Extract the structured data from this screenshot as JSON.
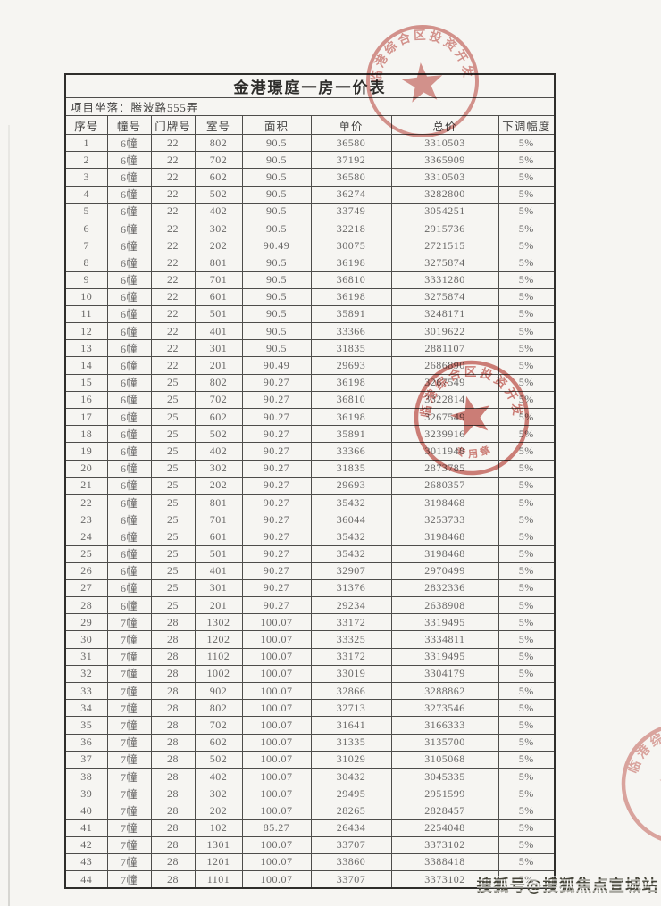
{
  "page": {
    "title": "金港璟庭一房一价表",
    "location": "项目坐落：腾波路555弄"
  },
  "table": {
    "headers": [
      "序号",
      "幢号",
      "门牌号",
      "室号",
      "面积",
      "单价",
      "总价",
      "下调幅度"
    ],
    "rows": [
      [
        "1",
        "6幢",
        "22",
        "802",
        "90.5",
        "36580",
        "3310503",
        "5%"
      ],
      [
        "2",
        "6幢",
        "22",
        "702",
        "90.5",
        "37192",
        "3365909",
        "5%"
      ],
      [
        "3",
        "6幢",
        "22",
        "602",
        "90.5",
        "36580",
        "3310503",
        "5%"
      ],
      [
        "4",
        "6幢",
        "22",
        "502",
        "90.5",
        "36274",
        "3282800",
        "5%"
      ],
      [
        "5",
        "6幢",
        "22",
        "402",
        "90.5",
        "33749",
        "3054251",
        "5%"
      ],
      [
        "6",
        "6幢",
        "22",
        "302",
        "90.5",
        "32218",
        "2915736",
        "5%"
      ],
      [
        "7",
        "6幢",
        "22",
        "202",
        "90.49",
        "30075",
        "2721515",
        "5%"
      ],
      [
        "8",
        "6幢",
        "22",
        "801",
        "90.5",
        "36198",
        "3275874",
        "5%"
      ],
      [
        "9",
        "6幢",
        "22",
        "701",
        "90.5",
        "36810",
        "3331280",
        "5%"
      ],
      [
        "10",
        "6幢",
        "22",
        "601",
        "90.5",
        "36198",
        "3275874",
        "5%"
      ],
      [
        "11",
        "6幢",
        "22",
        "501",
        "90.5",
        "35891",
        "3248171",
        "5%"
      ],
      [
        "12",
        "6幢",
        "22",
        "401",
        "90.5",
        "33366",
        "3019622",
        "5%"
      ],
      [
        "13",
        "6幢",
        "22",
        "301",
        "90.5",
        "31835",
        "2881107",
        "5%"
      ],
      [
        "14",
        "6幢",
        "22",
        "201",
        "90.49",
        "29693",
        "2686890",
        "5%"
      ],
      [
        "15",
        "6幢",
        "25",
        "802",
        "90.27",
        "36198",
        "3267549",
        "5%"
      ],
      [
        "16",
        "6幢",
        "25",
        "702",
        "90.27",
        "36810",
        "3322814",
        "5%"
      ],
      [
        "17",
        "6幢",
        "25",
        "602",
        "90.27",
        "36198",
        "3267549",
        "5%"
      ],
      [
        "18",
        "6幢",
        "25",
        "502",
        "90.27",
        "35891",
        "3239916",
        "5%"
      ],
      [
        "19",
        "6幢",
        "25",
        "402",
        "90.27",
        "33366",
        "3011948",
        "5%"
      ],
      [
        "20",
        "6幢",
        "25",
        "302",
        "90.27",
        "31835",
        "2873785",
        "5%"
      ],
      [
        "21",
        "6幢",
        "25",
        "202",
        "90.27",
        "29693",
        "2680357",
        "5%"
      ],
      [
        "22",
        "6幢",
        "25",
        "801",
        "90.27",
        "35432",
        "3198468",
        "5%"
      ],
      [
        "23",
        "6幢",
        "25",
        "701",
        "90.27",
        "36044",
        "3253733",
        "5%"
      ],
      [
        "24",
        "6幢",
        "25",
        "601",
        "90.27",
        "35432",
        "3198468",
        "5%"
      ],
      [
        "25",
        "6幢",
        "25",
        "501",
        "90.27",
        "35432",
        "3198468",
        "5%"
      ],
      [
        "26",
        "6幢",
        "25",
        "401",
        "90.27",
        "32907",
        "2970499",
        "5%"
      ],
      [
        "27",
        "6幢",
        "25",
        "301",
        "90.27",
        "31376",
        "2832336",
        "5%"
      ],
      [
        "28",
        "6幢",
        "25",
        "201",
        "90.27",
        "29234",
        "2638908",
        "5%"
      ],
      [
        "29",
        "7幢",
        "28",
        "1302",
        "100.07",
        "33172",
        "3319495",
        "5%"
      ],
      [
        "30",
        "7幢",
        "28",
        "1202",
        "100.07",
        "33325",
        "3334811",
        "5%"
      ],
      [
        "31",
        "7幢",
        "28",
        "1102",
        "100.07",
        "33172",
        "3319495",
        "5%"
      ],
      [
        "32",
        "7幢",
        "28",
        "1002",
        "100.07",
        "33019",
        "3304179",
        "5%"
      ],
      [
        "33",
        "7幢",
        "28",
        "902",
        "100.07",
        "32866",
        "3288862",
        "5%"
      ],
      [
        "34",
        "7幢",
        "28",
        "802",
        "100.07",
        "32713",
        "3273546",
        "5%"
      ],
      [
        "35",
        "7幢",
        "28",
        "702",
        "100.07",
        "31641",
        "3166333",
        "5%"
      ],
      [
        "36",
        "7幢",
        "28",
        "602",
        "100.07",
        "31335",
        "3135700",
        "5%"
      ],
      [
        "37",
        "7幢",
        "28",
        "502",
        "100.07",
        "31029",
        "3105068",
        "5%"
      ],
      [
        "38",
        "7幢",
        "28",
        "402",
        "100.07",
        "30432",
        "3045335",
        "5%"
      ],
      [
        "39",
        "7幢",
        "28",
        "302",
        "100.07",
        "29495",
        "2951599",
        "5%"
      ],
      [
        "40",
        "7幢",
        "28",
        "202",
        "100.07",
        "28265",
        "2828457",
        "5%"
      ],
      [
        "41",
        "7幢",
        "28",
        "102",
        "85.27",
        "26434",
        "2254048",
        "5%"
      ],
      [
        "42",
        "7幢",
        "28",
        "1301",
        "100.07",
        "33707",
        "3373102",
        "5%"
      ],
      [
        "43",
        "7幢",
        "28",
        "1201",
        "100.07",
        "33860",
        "3388418",
        "5%"
      ],
      [
        "44",
        "7幢",
        "28",
        "1101",
        "100.07",
        "33707",
        "3373102",
        "5%"
      ]
    ]
  },
  "stamps": {
    "ring_text": "临港综合区投资开发",
    "inner_text": "专用章",
    "color": "#c4564e"
  },
  "watermark": {
    "text": "搜狐号@搜狐焦点宣城站",
    "color": "#46453a"
  }
}
